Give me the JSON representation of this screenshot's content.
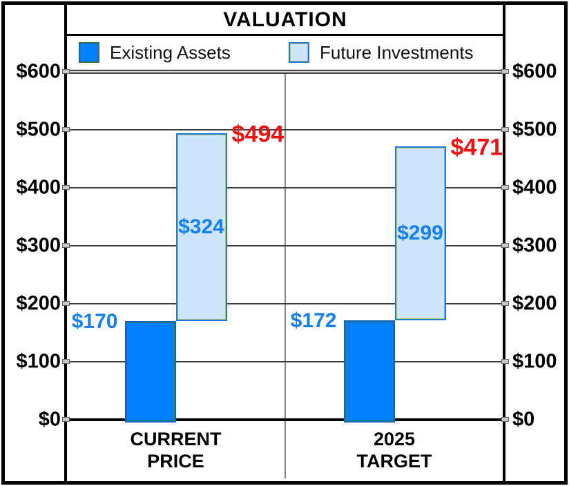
{
  "chart_data": {
    "type": "bar",
    "subtype": "waterfall-pair",
    "title": "VALUATION",
    "legend_position": "top",
    "grid": true,
    "legend": [
      {
        "label": "Existing Assets",
        "color": "#0080ff",
        "border": "#2f6b55"
      },
      {
        "label": "Future Investments",
        "color": "#cce5fc",
        "border": "#1878dc"
      }
    ],
    "y_axis": {
      "min": 0,
      "max": 600,
      "tick_interval": 100,
      "ticks": [
        "$600",
        "$500",
        "$400",
        "$300",
        "$200",
        "$100",
        "$0"
      ],
      "sides": "both"
    },
    "groups": [
      {
        "category_line1": "CURRENT",
        "category_line2": "PRICE",
        "existing_assets": 170,
        "future_investments": 324,
        "total": 494,
        "existing_label": "$170",
        "future_label": "$324",
        "total_label": "$494"
      },
      {
        "category_line1": "2025",
        "category_line2": "TARGET",
        "existing_assets": 172,
        "future_investments": 299,
        "total": 471,
        "existing_label": "$172",
        "future_label": "$299",
        "total_label": "$471"
      }
    ],
    "colors": {
      "existing_bar": "#0080ff",
      "future_bar": "#cce5fc",
      "value_label_blue": "#1580ee",
      "total_label_red": "#ee1111",
      "gridline": "#3a3a3a",
      "frame": "#000000"
    }
  }
}
